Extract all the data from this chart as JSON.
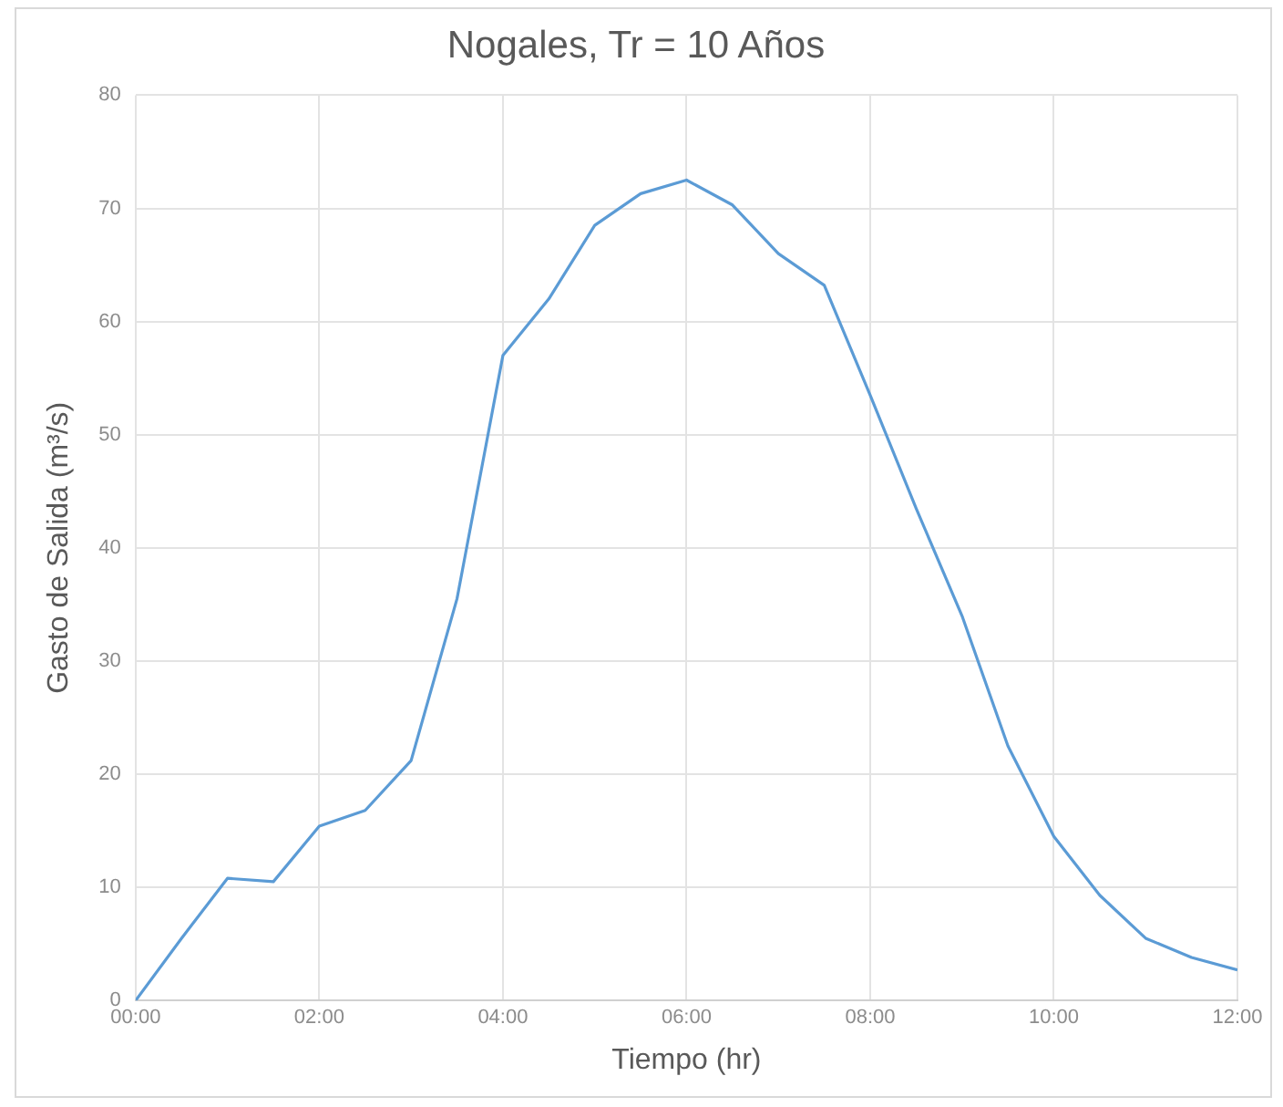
{
  "chart_data": {
    "type": "line",
    "title": "Nogales, Tr = 10 Años",
    "xlabel": "Tiempo (hr)",
    "ylabel": "Gasto de Salida (m³/s)",
    "x": [
      0,
      0.5,
      1,
      1.5,
      2,
      2.5,
      3,
      3.5,
      4,
      4.5,
      5,
      5.5,
      6,
      6.5,
      7,
      7.5,
      8,
      8.5,
      9,
      9.5,
      10,
      10.5,
      11,
      11.5,
      12
    ],
    "series": [
      {
        "color": "#5b9bd5",
        "values": [
          0,
          5.5,
          10.8,
          10.5,
          15.4,
          16.8,
          21.2,
          35.5,
          57,
          62,
          68.5,
          71.3,
          72.5,
          70.3,
          66,
          63.2,
          53.5,
          43.5,
          34,
          22.5,
          14.5,
          9.3,
          5.5,
          3.8,
          2.7
        ]
      }
    ],
    "xlim": [
      0,
      12
    ],
    "xticks": [
      {
        "value": 0,
        "label": "00:00"
      },
      {
        "value": 2,
        "label": "02:00"
      },
      {
        "value": 4,
        "label": "04:00"
      },
      {
        "value": 6,
        "label": "06:00"
      },
      {
        "value": 8,
        "label": "08:00"
      },
      {
        "value": 10,
        "label": "10:00"
      },
      {
        "value": 12,
        "label": "12:00"
      }
    ],
    "ylim": [
      0,
      80
    ],
    "yticks": [
      0,
      10,
      20,
      30,
      40,
      50,
      60,
      70,
      80
    ],
    "grid": true,
    "legend": false,
    "marker": "none",
    "line_style": "solid"
  }
}
